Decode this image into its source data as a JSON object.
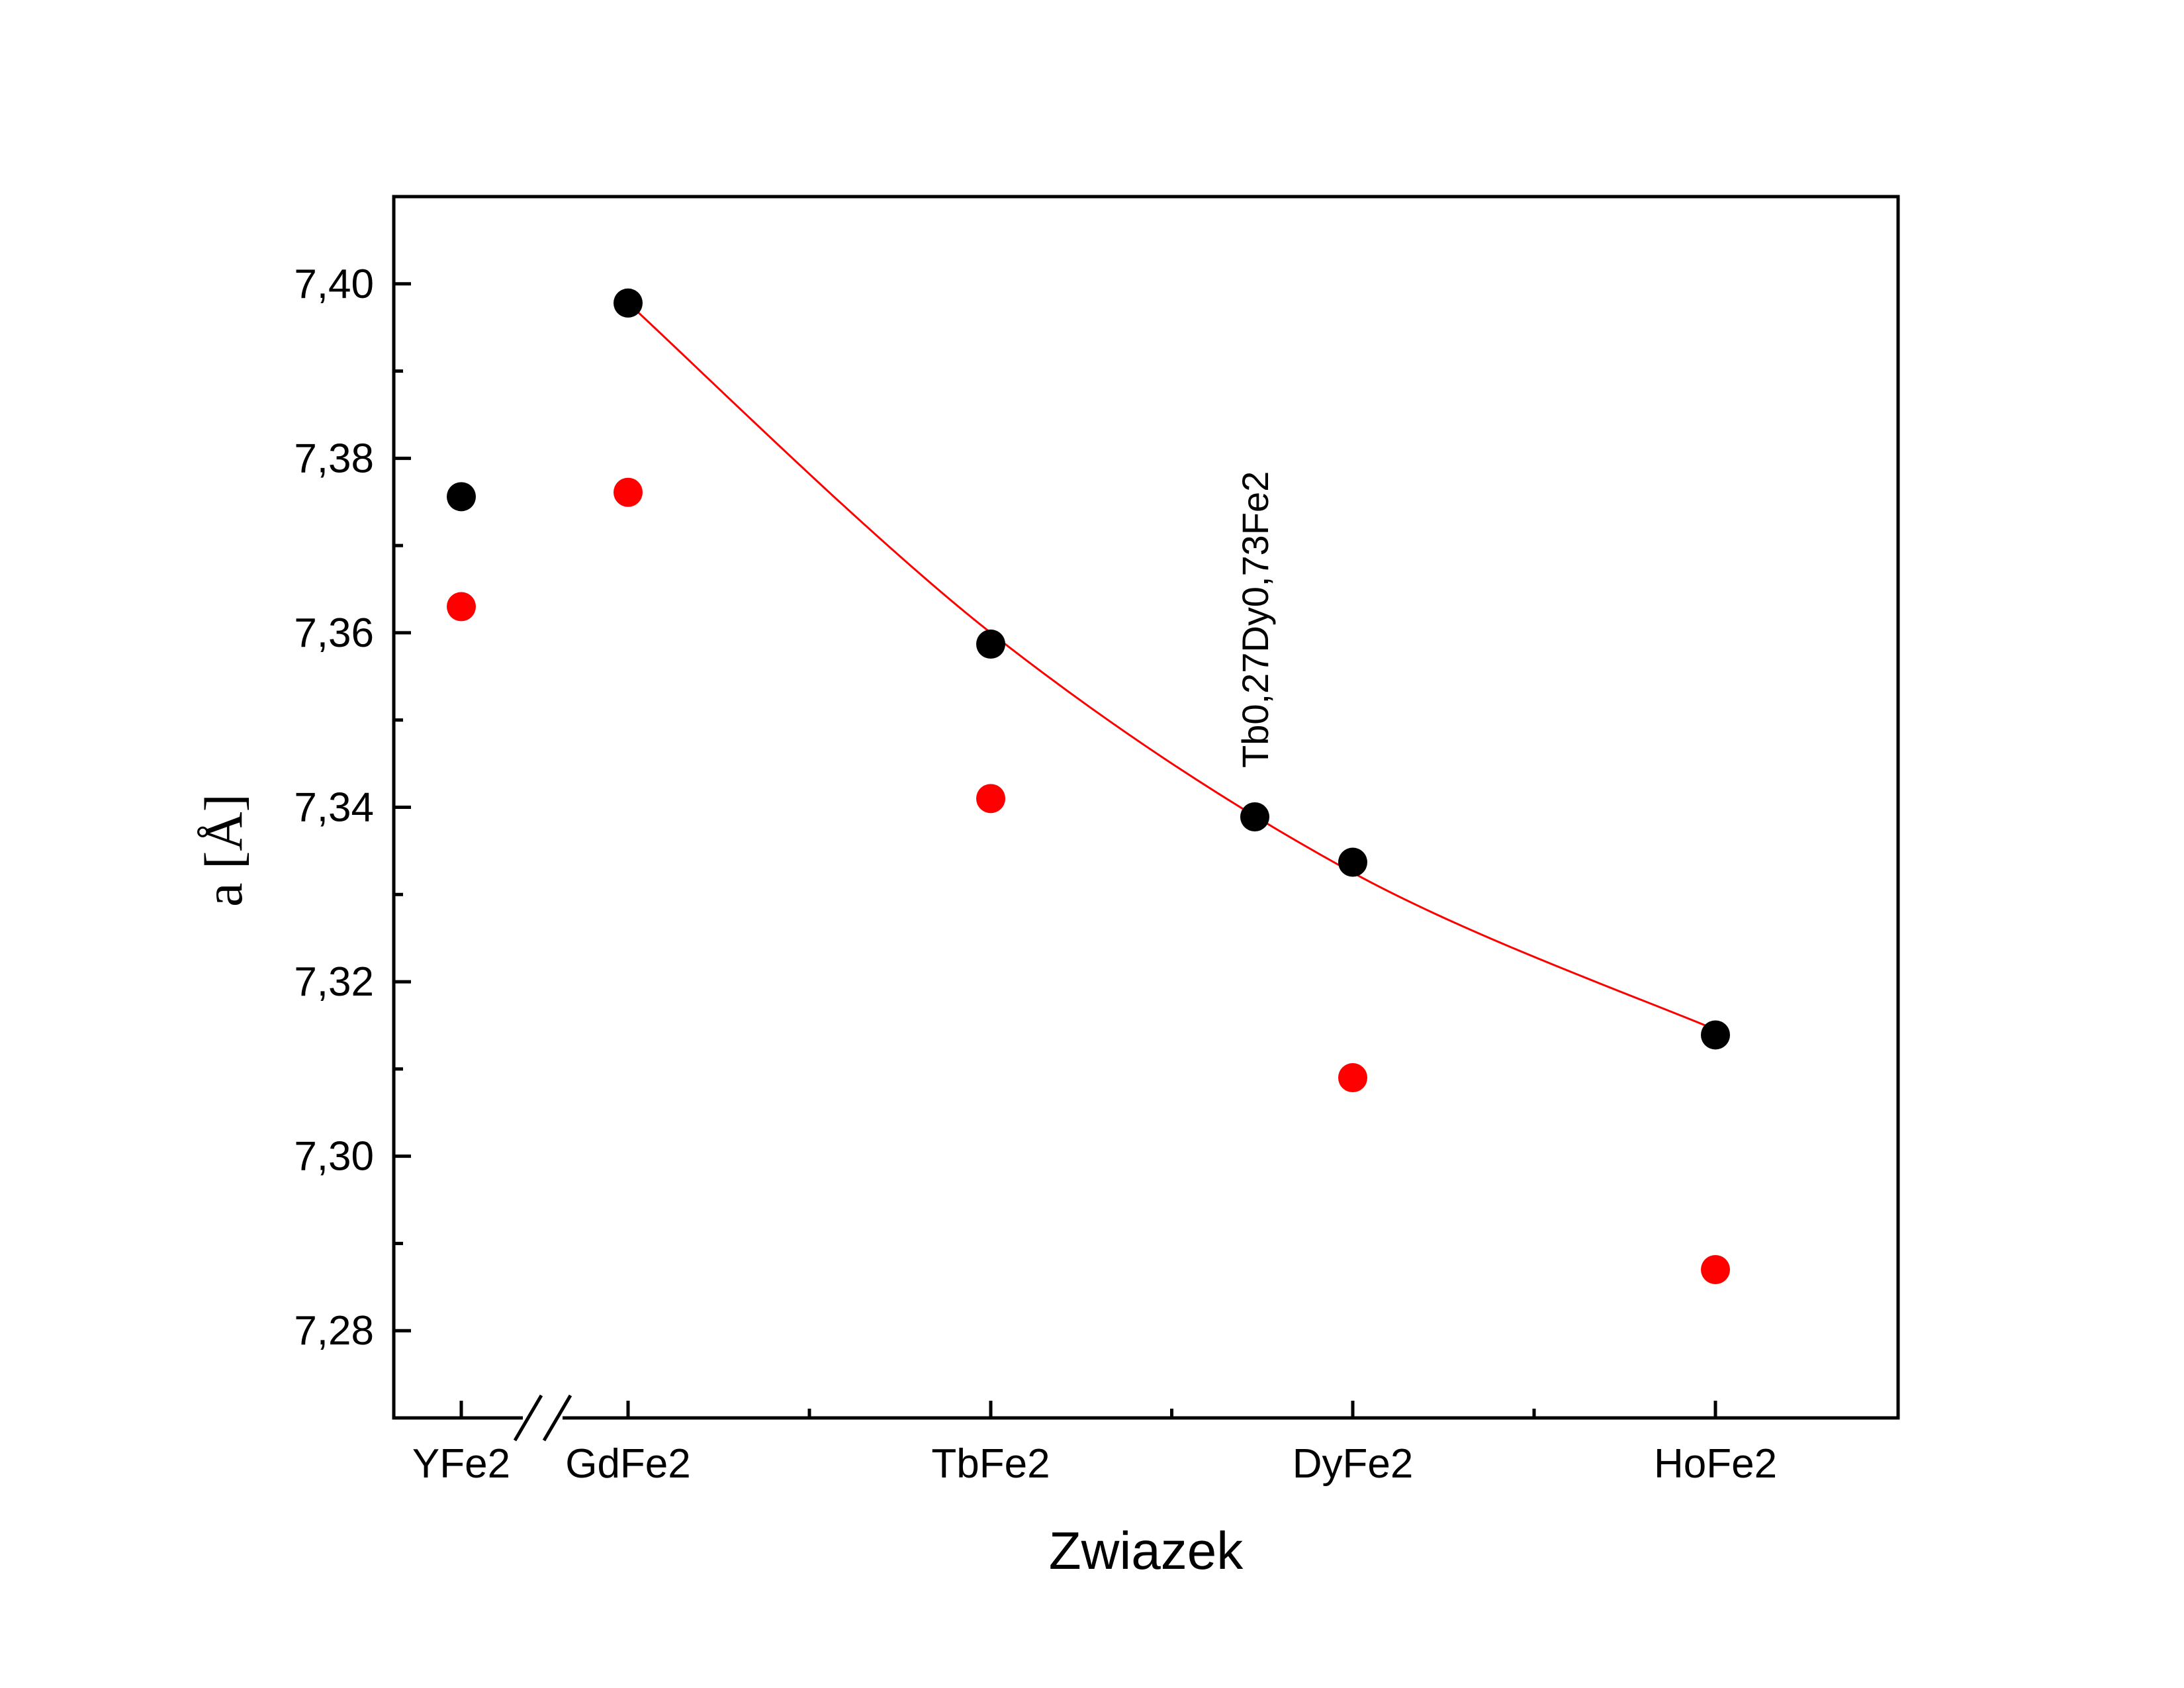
{
  "chart_data": {
    "type": "scatter",
    "title": "",
    "xlabel": "Zwiazek",
    "ylabel": "a [Å]",
    "categories": [
      "YFe2",
      "GdFe2",
      "TbFe2",
      "DyFe2",
      "HoFe2"
    ],
    "ylim": [
      7.27,
      7.41
    ],
    "yticks": [
      "7,28",
      "7,30",
      "7,32",
      "7,34",
      "7,36",
      "7,38",
      "7,40"
    ],
    "ytick_values": [
      7.28,
      7.3,
      7.32,
      7.34,
      7.36,
      7.38,
      7.4
    ],
    "axis_break": "between YFe2 and GdFe2",
    "grid": false,
    "series": [
      {
        "color": "#000000",
        "points": [
          {
            "x": "YFe2",
            "y": 7.3756
          },
          {
            "x": "GdFe2",
            "y": 7.3978
          },
          {
            "x": "TbFe2",
            "y": 7.3587
          },
          {
            "x": "Tb0,27Dy0,73Fe2",
            "y": 7.3389
          },
          {
            "x": "DyFe2",
            "y": 7.3337
          },
          {
            "x": "HoFe2",
            "y": 7.3139
          }
        ]
      },
      {
        "color": "#ff0000",
        "points": [
          {
            "x": "YFe2",
            "y": 7.363
          },
          {
            "x": "GdFe2",
            "y": 7.3761
          },
          {
            "x": "TbFe2",
            "y": 7.341
          },
          {
            "x": "DyFe2",
            "y": 7.309
          },
          {
            "x": "HoFe2",
            "y": 7.287
          }
        ]
      }
    ],
    "fit_curve": {
      "color": "#ff0000",
      "from": "GdFe2",
      "to": "HoFe2",
      "points": [
        {
          "x": "GdFe2",
          "y": 7.3978
        },
        {
          "x": "TbFe2",
          "y": 7.36
        },
        {
          "x": "DyFe2",
          "y": 7.3325
        },
        {
          "x": "HoFe2",
          "y": 7.3145
        }
      ]
    },
    "annotations": [
      {
        "text": "Tb0,27Dy0,73Fe2",
        "at": "Tb0,27Dy0,73Fe2",
        "rotation": "vertical"
      }
    ]
  }
}
